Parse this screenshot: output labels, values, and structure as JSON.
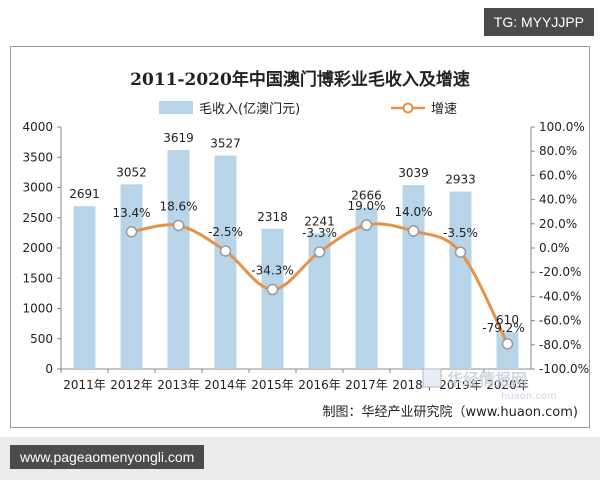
{
  "watermark_tag": "TG: MYYJJPP",
  "footer_url": "www.pageaomenyongli.com",
  "chart_data": {
    "type": "bar+line",
    "title": "2011-2020年中国澳门博彩业毛收入及增速",
    "categories": [
      "2011年",
      "2012年",
      "2013年",
      "2014年",
      "2015年",
      "2016年",
      "2017年",
      "2018年",
      "2019年",
      "2020年"
    ],
    "series": [
      {
        "name": "毛收入(亿澳门元)",
        "type": "bar",
        "axis": "left",
        "color": "#b8d4e8",
        "values": [
          2691,
          3052,
          3619,
          3527,
          2318,
          2241,
          2666,
          3039,
          2933,
          610
        ],
        "labels": [
          "2691",
          "3052",
          "3619",
          "3527",
          "2318",
          "2241",
          "2666",
          "3039",
          "2933",
          "610"
        ]
      },
      {
        "name": "增速",
        "type": "line",
        "axis": "right",
        "color": "#e8914a",
        "values": [
          null,
          13.4,
          18.6,
          -2.5,
          -34.3,
          -3.3,
          19.0,
          14.0,
          -3.5,
          -79.2
        ],
        "labels": [
          "",
          "13.4%",
          "18.6%",
          "-2.5%",
          "-34.3%",
          "-3.3%",
          "19.0%",
          "14.0%",
          "-3.5%",
          "-79.2%"
        ]
      }
    ],
    "y_left": {
      "min": 0,
      "max": 4000,
      "ticks": [
        "0",
        "500",
        "1000",
        "1500",
        "2000",
        "2500",
        "3000",
        "3500",
        "4000"
      ]
    },
    "y_right": {
      "min": -100,
      "max": 100,
      "ticks": [
        "-100.0%",
        "-80.0%",
        "-60.0%",
        "-40.0%",
        "-20.0%",
        "0.0%",
        "20.0%",
        "40.0%",
        "60.0%",
        "80.0%",
        "100.0%"
      ]
    },
    "legend_position": "top",
    "grid": false,
    "source": "制图：华经产业研究院（www.huaon.com)",
    "logo_text": "华经情报网",
    "logo_url": "huaon.com"
  }
}
